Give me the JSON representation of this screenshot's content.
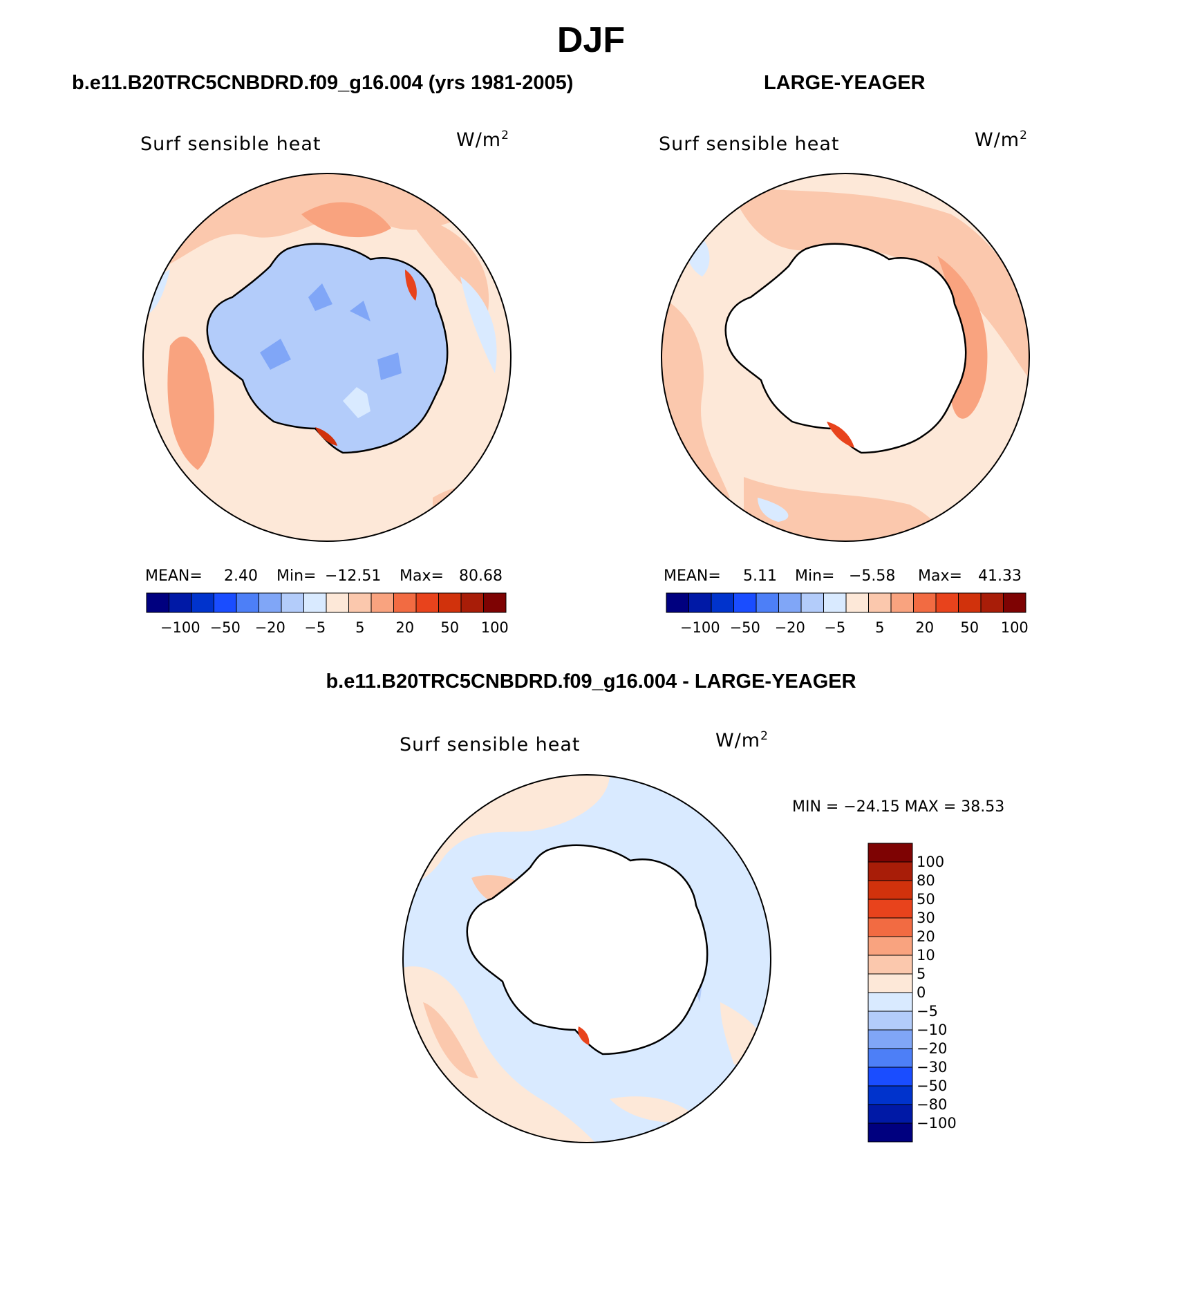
{
  "figure": {
    "title": "DJF"
  },
  "palette": [
    "#00007f",
    "#0019a6",
    "#0033cc",
    "#1a4dff",
    "#4d7ff7",
    "#80a6f7",
    "#b3ccfa",
    "#d9eaff",
    "#fde8d8",
    "#fbc8ad",
    "#f9a37f",
    "#f26b42",
    "#e8431c",
    "#d1320c",
    "#a81d08",
    "#7e0303"
  ],
  "panels": {
    "model": {
      "case_title": "b.e11.B20TRC5CNBDRD.f09_g16.004 (yrs 1981-2005)",
      "variable": "Surf  sensible  heat",
      "units_base": "W/m",
      "units_exp": "2",
      "mean_label": "MEAN=",
      "mean": "2.40",
      "min_label": "Min=",
      "min": "−12.51",
      "max_label": "Max=",
      "max": "80.68",
      "colorbar_labels": [
        "−100",
        "−50",
        "−20",
        "−5",
        "5",
        "20",
        "50",
        "100"
      ]
    },
    "obs": {
      "case_title": "LARGE-YEAGER",
      "variable": "Surf  sensible  heat",
      "units_base": "W/m",
      "units_exp": "2",
      "mean_label": "MEAN=",
      "mean": "5.11",
      "min_label": "Min=",
      "min": "−5.58",
      "max_label": "Max=",
      "max": "41.33",
      "colorbar_labels": [
        "−100",
        "−50",
        "−20",
        "−5",
        "5",
        "20",
        "50",
        "100"
      ]
    },
    "diff": {
      "case_title": "b.e11.B20TRC5CNBDRD.f09_g16.004 - LARGE-YEAGER",
      "variable": "Surf  sensible  heat",
      "units_base": "W/m",
      "units_exp": "2",
      "minmax_text": "MIN = −24.15 MAX =   38.53",
      "colorbar_labels": [
        "100",
        "80",
        "50",
        "30",
        "20",
        "10",
        "5",
        "0",
        "−5",
        "−10",
        "−20",
        "−30",
        "−50",
        "−80",
        "−100"
      ]
    }
  }
}
